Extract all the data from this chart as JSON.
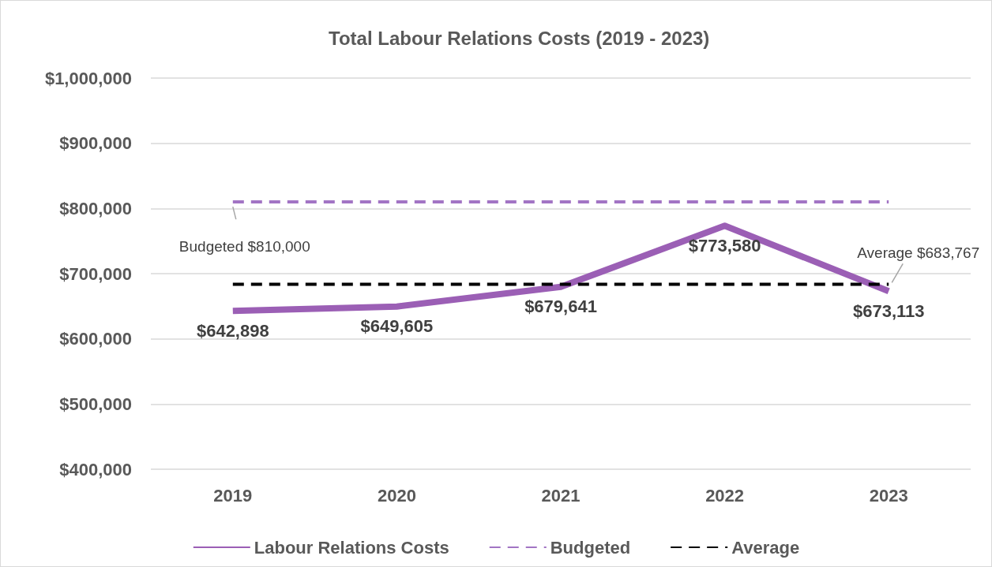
{
  "chart_data": {
    "type": "line",
    "title": "Total Labour Relations Costs (2019 - 2023)",
    "categories": [
      "2019",
      "2020",
      "2021",
      "2022",
      "2023"
    ],
    "series": [
      {
        "name": "Labour Relations Costs",
        "color": "#9b5fb5",
        "line_style": "solid",
        "values": [
          642898,
          649605,
          679641,
          773580,
          673113
        ],
        "value_labels": [
          "$642,898",
          "$649,605",
          "$679,641",
          "$773,580",
          "$673,113"
        ]
      },
      {
        "name": "Budgeted",
        "color": "#a274c4",
        "line_style": "dashed",
        "values": [
          810000,
          810000,
          810000,
          810000,
          810000
        ]
      },
      {
        "name": "Average",
        "color": "#000000",
        "line_style": "dashed",
        "values": [
          683767,
          683767,
          683767,
          683767,
          683767
        ]
      }
    ],
    "ylim": [
      400000,
      1000000
    ],
    "yticks": [
      {
        "value": 400000,
        "label": "$400,000"
      },
      {
        "value": 500000,
        "label": "$500,000"
      },
      {
        "value": 600000,
        "label": "$600,000"
      },
      {
        "value": 700000,
        "label": "$700,000"
      },
      {
        "value": 800000,
        "label": "$800,000"
      },
      {
        "value": 900000,
        "label": "$900,000"
      },
      {
        "value": 1000000,
        "label": "$1,000,000"
      }
    ],
    "annotations": [
      {
        "text": "Budgeted $810,000",
        "x": "2019",
        "y": 810000
      },
      {
        "text": "Average $683,767",
        "x": "2023",
        "y": 683767
      }
    ],
    "grid": "y",
    "legend": "bottom",
    "marker": "none"
  }
}
